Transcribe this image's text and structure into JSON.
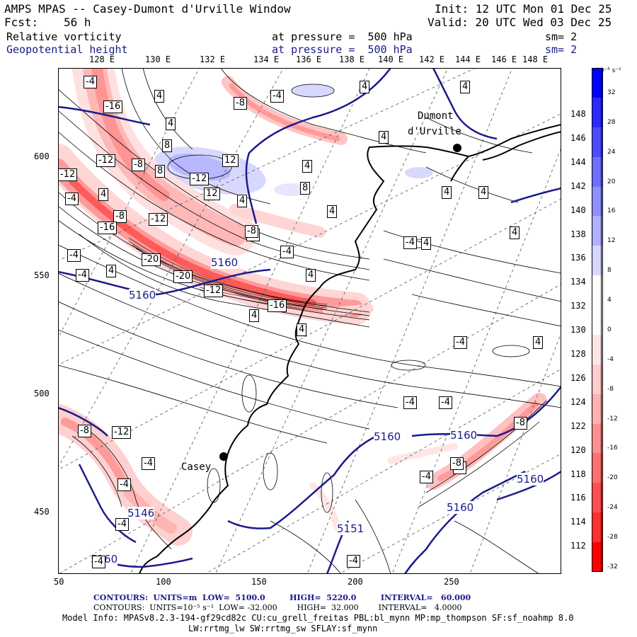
{
  "header": {
    "title": "AMPS MPAS -- Casey-Dumont d'Urville Window",
    "init": "Init: 12 UTC Mon 01 Dec 25",
    "fcst_label": "Fcst:",
    "fcst_value": "56 h",
    "valid": "Valid: 20 UTC Wed 03 Dec 25",
    "field1_name": "Relative vorticity",
    "field1_level": "at pressure =  500 hPa",
    "field1_sm": "sm= 2",
    "field2_name": "Geopotential height",
    "field2_level": "at pressure =  500 hPa",
    "field2_sm": "sm= 2"
  },
  "lon_labels": [
    "128 E",
    "130 E",
    "132 E",
    "134 E",
    "136 E",
    "138 E",
    "140 E",
    "142 E",
    "144 E",
    "146 E",
    "148 E"
  ],
  "x_ticks": [
    "50",
    "100",
    "150",
    "200",
    "250"
  ],
  "y_ticks": [
    "600",
    "550",
    "500",
    "450"
  ],
  "right_lat_labels": [
    "148 E",
    "146 E",
    "144 E",
    "142 E",
    "140 E",
    "138 E",
    "136 E",
    "134 E",
    "132 E",
    "130 E",
    "128 E",
    "126 E",
    "124 E",
    "122 E",
    "120 E",
    "118 E",
    "116 E",
    "114 E",
    "112 E"
  ],
  "colorbar": {
    "units": "10⁻⁵ s⁻¹",
    "labels": [
      "32",
      "28",
      "24",
      "20",
      "16",
      "12",
      "8",
      "4",
      "0",
      "-4",
      "-8",
      "-12",
      "-16",
      "-20",
      "-24",
      "-28",
      "-32"
    ],
    "colors": [
      "#0000ff",
      "#2a2aff",
      "#4c4cff",
      "#6f6fff",
      "#9090ff",
      "#b0b0ff",
      "#d8d8ff",
      "#ffffff",
      "#ffffff",
      "#ffe6e6",
      "#ffcccc",
      "#ffb0b0",
      "#ff9090",
      "#ff7070",
      "#ff5050",
      "#ff3030",
      "#ff0000"
    ]
  },
  "stations": {
    "casey": "Casey",
    "dumont_1": "Dumont",
    "dumont_2": "d'Urville"
  },
  "height_labels": [
    "5160",
    "5160",
    "5160",
    "5160",
    "5160",
    "5146",
    "5151",
    "5160",
    "5160"
  ],
  "vort_labels": [
    "-4",
    "4",
    "-8",
    "-4",
    "4",
    "4",
    "-16",
    "-12",
    "-8",
    "8",
    "8",
    "12",
    "-12",
    "-4",
    "-8",
    "4",
    "-16",
    "-12",
    "12",
    "4",
    "8",
    "4",
    "4",
    "-4",
    "-12",
    "-4",
    "-20",
    "-20",
    "-16",
    "-4",
    "4",
    "-12",
    "-8",
    "-4",
    "-4",
    "4",
    "4",
    "4",
    "4",
    "4",
    "4",
    "4",
    "4",
    "4",
    "4",
    "-4",
    "-4",
    "-4",
    "-4",
    "-4",
    "-8",
    "-8",
    "-8",
    "-8",
    "-12",
    "-4",
    "-4",
    "-4",
    "-4"
  ],
  "footer": {
    "line1": "CONTOURS:  UNITS=m  LOW=  5100.0         HIGH=  5220.0         INTERVAL=   60.000",
    "line2": "CONTOURS:  UNITS=10⁻⁵ s⁻¹  LOW= -32.000        HIGH=  32.000        INTERVAL=   4.0000",
    "line3": "Model Info: MPASv8.2.3-194-gf29cd82c CU:cu_grell_freitas PBL:bl_mynn MP:mp_thompson SF:sf_noahmp 8.0",
    "line4": "LW:rrtmg_lw SW:rrtmg_sw SFLAY:sf_mynn"
  }
}
